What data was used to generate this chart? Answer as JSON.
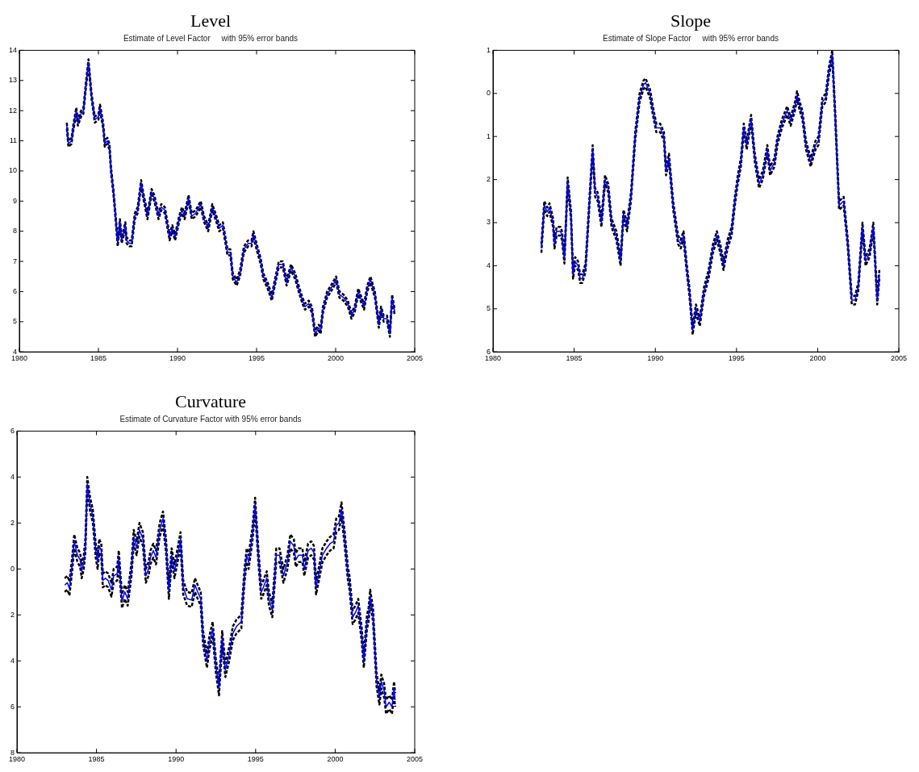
{
  "chart_data": [
    {
      "type": "line",
      "title": "Level",
      "subtitle": "Estimate of Level Factor     with 95% error bands",
      "xlim": [
        1980,
        2005
      ],
      "xticks": [
        1980,
        1985,
        1990,
        1995,
        2000,
        2005
      ],
      "ylim": [
        4,
        14
      ],
      "yticks": [
        4,
        5,
        6,
        7,
        8,
        9,
        10,
        11,
        12,
        13,
        14
      ],
      "grid": false,
      "legend": false,
      "x": [
        1983.0,
        1983.1,
        1983.3,
        1983.4,
        1983.6,
        1983.7,
        1983.9,
        1984.05,
        1984.2,
        1984.37,
        1984.56,
        1984.77,
        1985.0,
        1985.1,
        1985.3,
        1985.4,
        1985.56,
        1985.7,
        1985.8,
        1985.95,
        1986.08,
        1986.22,
        1986.36,
        1986.47,
        1986.57,
        1986.7,
        1986.78,
        1986.96,
        1987.1,
        1987.3,
        1987.48,
        1987.7,
        1987.83,
        1988.1,
        1988.36,
        1988.53,
        1988.8,
        1988.97,
        1989.2,
        1989.5,
        1989.67,
        1989.85,
        1990.1,
        1990.28,
        1990.45,
        1990.7,
        1990.9,
        1991.15,
        1991.47,
        1991.68,
        1991.94,
        1992.2,
        1992.46,
        1992.64,
        1992.87,
        1993.16,
        1993.34,
        1993.5,
        1993.74,
        1993.95,
        1994.2,
        1994.47,
        1994.68,
        1994.8,
        1995.1,
        1995.26,
        1995.43,
        1995.7,
        1995.96,
        1996.2,
        1996.4,
        1996.66,
        1996.9,
        1997.18,
        1997.45,
        1997.66,
        1997.9,
        1998.06,
        1998.3,
        1998.5,
        1998.7,
        1998.93,
        1999.05,
        1999.2,
        1999.46,
        1999.7,
        2000.03,
        2000.24,
        2000.5,
        2000.77,
        2001.0,
        2001.2,
        2001.43,
        2001.64,
        2001.8,
        2002.0,
        2002.2,
        2002.48,
        2002.73,
        2002.87,
        2003.04,
        2003.25,
        2003.43,
        2003.57,
        2003.74
      ],
      "series": [
        {
          "color": "#000000",
          "line_style": "dashed",
          "values": [
            11.4,
            10.8,
            10.9,
            11.3,
            11.9,
            11.5,
            11.8,
            11.9,
            12.7,
            13.5,
            12.4,
            11.6,
            11.7,
            12.0,
            11.4,
            10.8,
            10.9,
            10.7,
            9.9,
            9.2,
            8.4,
            7.5,
            8.2,
            7.6,
            7.8,
            8.1,
            7.6,
            7.5,
            7.5,
            8.4,
            8.6,
            9.5,
            9.1,
            8.4,
            9.2,
            9.0,
            8.4,
            8.7,
            8.6,
            7.7,
            8.0,
            7.7,
            8.3,
            8.6,
            8.4,
            9.0,
            8.4,
            8.5,
            8.8,
            8.3,
            8.0,
            8.7,
            8.3,
            8.0,
            8.1,
            7.2,
            7.2,
            6.4,
            6.2,
            6.5,
            7.3,
            7.5,
            7.5,
            7.8,
            7.2,
            6.9,
            6.4,
            6.1,
            5.7,
            6.3,
            6.8,
            6.8,
            6.2,
            6.7,
            6.4,
            6.0,
            5.6,
            5.4,
            5.5,
            5.3,
            4.5,
            4.7,
            4.6,
            5.3,
            5.8,
            6.0,
            6.3,
            5.8,
            5.7,
            5.5,
            5.1,
            5.3,
            5.9,
            5.6,
            5.4,
            6.0,
            6.3,
            5.8,
            4.8,
            5.3,
            5.0,
            5.0,
            4.5,
            5.7,
            5.2
          ]
        },
        {
          "color": "#000000",
          "line_style": "dashed",
          "values": [
            11.6,
            11.0,
            11.1,
            11.5,
            12.1,
            11.7,
            12.0,
            12.1,
            12.9,
            13.7,
            12.6,
            11.8,
            11.9,
            12.2,
            11.6,
            11.0,
            11.1,
            10.9,
            10.1,
            9.4,
            8.6,
            7.7,
            8.4,
            7.8,
            8.0,
            8.3,
            7.8,
            7.7,
            7.7,
            8.6,
            8.8,
            9.7,
            9.3,
            8.6,
            9.4,
            9.2,
            8.6,
            8.9,
            8.8,
            7.9,
            8.2,
            7.9,
            8.5,
            8.8,
            8.6,
            9.2,
            8.6,
            8.7,
            9.0,
            8.5,
            8.2,
            8.9,
            8.5,
            8.2,
            8.3,
            7.4,
            7.4,
            6.6,
            6.4,
            6.7,
            7.5,
            7.7,
            7.7,
            8.0,
            7.4,
            7.1,
            6.6,
            6.3,
            5.9,
            6.5,
            7.0,
            7.0,
            6.4,
            6.9,
            6.6,
            6.2,
            5.8,
            5.6,
            5.7,
            5.5,
            4.7,
            4.9,
            4.8,
            5.5,
            6.0,
            6.2,
            6.5,
            6.0,
            5.9,
            5.7,
            5.3,
            5.5,
            6.1,
            5.8,
            5.6,
            6.2,
            6.5,
            6.0,
            5.0,
            5.5,
            5.2,
            5.2,
            4.7,
            5.9,
            5.4
          ]
        },
        {
          "color": "#0000ff",
          "line_style": "solid",
          "values": [
            11.5,
            10.9,
            11.0,
            11.4,
            12.0,
            11.6,
            11.9,
            12.0,
            12.8,
            13.6,
            12.5,
            11.7,
            11.8,
            12.1,
            11.5,
            10.9,
            11.0,
            10.8,
            10.0,
            9.3,
            8.5,
            7.6,
            8.3,
            7.7,
            7.9,
            8.2,
            7.7,
            7.6,
            7.6,
            8.5,
            8.7,
            9.6,
            9.2,
            8.5,
            9.3,
            9.1,
            8.5,
            8.8,
            8.7,
            7.8,
            8.1,
            7.8,
            8.4,
            8.7,
            8.5,
            9.1,
            8.5,
            8.6,
            8.9,
            8.4,
            8.1,
            8.8,
            8.4,
            8.1,
            8.2,
            7.3,
            7.3,
            6.5,
            6.3,
            6.6,
            7.4,
            7.6,
            7.6,
            7.9,
            7.3,
            7.0,
            6.5,
            6.2,
            5.8,
            6.4,
            6.9,
            6.9,
            6.3,
            6.8,
            6.5,
            6.1,
            5.7,
            5.5,
            5.6,
            5.4,
            4.6,
            4.8,
            4.7,
            5.4,
            5.9,
            6.1,
            6.4,
            5.9,
            5.8,
            5.6,
            5.2,
            5.4,
            6.0,
            5.7,
            5.5,
            6.1,
            6.4,
            5.9,
            4.9,
            5.4,
            5.1,
            5.1,
            4.6,
            5.8,
            5.3
          ]
        }
      ]
    },
    {
      "type": "line",
      "title": "Slope",
      "subtitle": "Estimate of Slope Factor     with 95% error bands",
      "xlim": [
        1980,
        2005
      ],
      "xticks": [
        1980,
        1985,
        1990,
        1995,
        2000,
        2005
      ],
      "ylim": [
        -6,
        1
      ],
      "yticks": [
        {
          "value": -6,
          "label": "6"
        },
        {
          "value": -5,
          "label": "5"
        },
        {
          "value": -4,
          "label": "4"
        },
        {
          "value": -3,
          "label": "3"
        },
        {
          "value": -2,
          "label": "2"
        },
        {
          "value": -1,
          "label": "1"
        },
        0,
        1
      ],
      "grid": false,
      "legend": false,
      "x": [
        1982.98,
        1983.16,
        1983.34,
        1983.48,
        1983.7,
        1983.79,
        1983.92,
        1984.16,
        1984.25,
        1984.4,
        1984.6,
        1984.8,
        1984.93,
        1985.06,
        1985.24,
        1985.37,
        1985.5,
        1985.7,
        1985.96,
        1986.14,
        1986.29,
        1986.45,
        1986.68,
        1986.9,
        1987.1,
        1987.3,
        1987.6,
        1987.86,
        1988.04,
        1988.26,
        1988.5,
        1988.76,
        1989.03,
        1989.27,
        1989.4,
        1989.67,
        1989.85,
        1990.06,
        1990.3,
        1990.53,
        1990.66,
        1990.84,
        1991.1,
        1991.4,
        1991.56,
        1991.74,
        1991.92,
        1992.1,
        1992.3,
        1992.5,
        1992.74,
        1993.0,
        1993.28,
        1993.55,
        1993.79,
        1994.0,
        1994.2,
        1994.45,
        1994.7,
        1994.9,
        1995.08,
        1995.27,
        1995.45,
        1995.63,
        1995.9,
        1996.13,
        1996.39,
        1996.62,
        1996.9,
        1997.07,
        1997.34,
        1997.52,
        1997.8,
        1998.12,
        1998.34,
        1998.6,
        1998.73,
        1998.9,
        1999.06,
        1999.28,
        1999.57,
        1999.87,
        2000.05,
        2000.29,
        2000.5,
        2000.69,
        2000.9,
        2001.08,
        2001.32,
        2001.6,
        2001.86,
        2002.1,
        2002.3,
        2002.5,
        2002.76,
        2002.95,
        2003.2,
        2003.43,
        2003.67,
        2003.8
      ],
      "series": [
        {
          "color": "#000000",
          "line_style": "dashed",
          "values": [
            -3.7,
            -2.7,
            -2.85,
            -2.75,
            -3.1,
            -3.6,
            -3.3,
            -3.3,
            -3.4,
            -3.95,
            -2.15,
            -2.9,
            -4.3,
            -4.0,
            -4.1,
            -4.4,
            -4.4,
            -4.15,
            -2.5,
            -1.4,
            -2.4,
            -2.5,
            -3.1,
            -2.1,
            -2.3,
            -3.1,
            -3.4,
            -4.0,
            -2.9,
            -3.2,
            -2.5,
            -1.1,
            -0.2,
            0.1,
            0.15,
            -0.1,
            -0.5,
            -0.9,
            -0.9,
            -1.1,
            -1.9,
            -1.6,
            -2.7,
            -3.5,
            -3.6,
            -3.4,
            -4.1,
            -4.7,
            -5.6,
            -5.1,
            -5.4,
            -4.7,
            -4.3,
            -3.7,
            -3.4,
            -3.7,
            -4.1,
            -3.6,
            -3.3,
            -2.6,
            -2.1,
            -1.7,
            -0.9,
            -1.3,
            -0.7,
            -1.6,
            -2.2,
            -2.0,
            -1.4,
            -1.9,
            -1.7,
            -1.2,
            -0.8,
            -0.5,
            -0.75,
            -0.4,
            -0.15,
            -0.4,
            -0.6,
            -1.3,
            -1.7,
            -1.3,
            -1.2,
            -0.3,
            -0.2,
            0.4,
            0.8,
            -0.6,
            -2.7,
            -2.6,
            -3.6,
            -4.9,
            -4.9,
            -4.6,
            -3.2,
            -4.0,
            -3.8,
            -3.2,
            -4.9,
            -4.3
          ]
        },
        {
          "color": "#000000",
          "line_style": "dashed",
          "values": [
            -3.5,
            -2.5,
            -2.65,
            -2.55,
            -2.9,
            -3.4,
            -3.1,
            -3.1,
            -3.2,
            -3.75,
            -1.95,
            -2.7,
            -4.1,
            -3.8,
            -3.9,
            -4.2,
            -4.2,
            -3.95,
            -2.3,
            -1.2,
            -2.2,
            -2.3,
            -2.9,
            -1.9,
            -2.1,
            -2.9,
            -3.2,
            -3.8,
            -2.7,
            -3.0,
            -2.3,
            -0.9,
            0.0,
            0.3,
            0.35,
            0.1,
            -0.3,
            -0.7,
            -0.7,
            -0.9,
            -1.7,
            -1.4,
            -2.5,
            -3.3,
            -3.4,
            -3.2,
            -3.9,
            -4.5,
            -5.4,
            -4.9,
            -5.2,
            -4.5,
            -4.1,
            -3.5,
            -3.2,
            -3.5,
            -3.9,
            -3.4,
            -3.1,
            -2.4,
            -1.9,
            -1.5,
            -0.7,
            -1.1,
            -0.5,
            -1.4,
            -2.0,
            -1.8,
            -1.2,
            -1.7,
            -1.5,
            -1.0,
            -0.6,
            -0.3,
            -0.55,
            -0.2,
            0.05,
            -0.2,
            -0.4,
            -1.1,
            -1.5,
            -1.1,
            -1.0,
            -0.1,
            0.0,
            0.6,
            1.0,
            -0.4,
            -2.5,
            -2.4,
            -3.4,
            -4.7,
            -4.7,
            -4.4,
            -3.0,
            -3.8,
            -3.6,
            -3.0,
            -4.7,
            -4.1
          ]
        },
        {
          "color": "#0000ff",
          "line_style": "solid",
          "values": [
            -3.6,
            -2.6,
            -2.75,
            -2.65,
            -3.0,
            -3.5,
            -3.2,
            -3.2,
            -3.3,
            -3.85,
            -2.05,
            -2.8,
            -4.2,
            -3.9,
            -4.0,
            -4.3,
            -4.3,
            -4.05,
            -2.4,
            -1.3,
            -2.3,
            -2.4,
            -3.0,
            -2.0,
            -2.2,
            -3.0,
            -3.3,
            -3.9,
            -2.8,
            -3.1,
            -2.4,
            -1.0,
            -0.1,
            0.2,
            0.25,
            0.0,
            -0.4,
            -0.8,
            -0.8,
            -1.0,
            -1.8,
            -1.5,
            -2.6,
            -3.4,
            -3.5,
            -3.3,
            -4.0,
            -4.6,
            -5.5,
            -5.0,
            -5.3,
            -4.6,
            -4.2,
            -3.6,
            -3.3,
            -3.6,
            -4.0,
            -3.5,
            -3.2,
            -2.5,
            -2.0,
            -1.6,
            -0.8,
            -1.2,
            -0.6,
            -1.5,
            -2.1,
            -1.9,
            -1.3,
            -1.8,
            -1.6,
            -1.1,
            -0.7,
            -0.4,
            -0.65,
            -0.3,
            -0.05,
            -0.3,
            -0.5,
            -1.2,
            -1.6,
            -1.2,
            -1.1,
            -0.2,
            -0.1,
            0.5,
            0.9,
            -0.5,
            -2.6,
            -2.5,
            -3.5,
            -4.8,
            -4.8,
            -4.5,
            -3.1,
            -3.9,
            -3.7,
            -3.1,
            -4.8,
            -4.2
          ]
        }
      ]
    },
    {
      "type": "line",
      "title": "Curvature",
      "subtitle": "Estimate of Curvature Factor with 95% error bands",
      "xlim": [
        1980,
        2005
      ],
      "xticks": [
        1980,
        1985,
        1990,
        1995,
        2000,
        2005
      ],
      "ylim": [
        -8,
        6
      ],
      "yticks": [
        {
          "value": -8,
          "label": "8"
        },
        {
          "value": -6,
          "label": "6"
        },
        {
          "value": -4,
          "label": "4"
        },
        {
          "value": -2,
          "label": "2"
        },
        0,
        2,
        4,
        6
      ],
      "grid": false,
      "legend": false,
      "x": [
        1983.0,
        1983.17,
        1983.3,
        1983.47,
        1983.6,
        1983.8,
        1983.97,
        1984.07,
        1984.2,
        1984.3,
        1984.42,
        1984.6,
        1984.77,
        1984.95,
        1985.07,
        1985.17,
        1985.3,
        1985.4,
        1985.56,
        1985.73,
        1985.94,
        1986.08,
        1986.3,
        1986.4,
        1986.6,
        1986.78,
        1986.96,
        1987.2,
        1987.34,
        1987.52,
        1987.7,
        1987.92,
        1988.1,
        1988.27,
        1988.39,
        1988.57,
        1988.74,
        1988.97,
        1989.18,
        1989.37,
        1989.55,
        1989.72,
        1989.9,
        1990.07,
        1990.28,
        1990.45,
        1990.7,
        1990.98,
        1991.19,
        1991.36,
        1991.55,
        1991.7,
        1991.94,
        1992.1,
        1992.3,
        1992.5,
        1992.7,
        1992.9,
        1993.1,
        1993.34,
        1993.57,
        1993.8,
        1994.1,
        1994.3,
        1994.44,
        1994.56,
        1994.8,
        1994.97,
        1995.17,
        1995.35,
        1995.49,
        1995.7,
        1995.84,
        1996.05,
        1996.3,
        1996.5,
        1996.75,
        1997.0,
        1997.18,
        1997.4,
        1997.53,
        1997.7,
        1997.94,
        1998.06,
        1998.3,
        1998.5,
        1998.67,
        1998.8,
        1998.98,
        1999.2,
        1999.46,
        1999.68,
        1999.9,
        2000.07,
        2000.24,
        2000.4,
        2000.6,
        2000.8,
        2000.9,
        2001.1,
        2001.27,
        2001.45,
        2001.66,
        2001.8,
        2002.0,
        2002.1,
        2002.2,
        2002.38,
        2002.6,
        2002.78,
        2002.9,
        2003.08,
        2003.2,
        2003.4,
        2003.57,
        2003.7,
        2003.77
      ],
      "series": [
        {
          "color": "#000000",
          "line_style": "dashed",
          "values": [
            -1.0,
            -0.9,
            -1.15,
            -0.1,
            0.9,
            0.3,
            0.1,
            -0.4,
            0.0,
            0.7,
            3.4,
            2.5,
            2.0,
            0.5,
            0.0,
            0.7,
            0.5,
            -0.8,
            -0.7,
            -0.8,
            -1.2,
            -0.6,
            -0.5,
            0.2,
            -1.7,
            -1.3,
            -1.6,
            -0.3,
            1.1,
            0.6,
            1.4,
            1.0,
            -0.6,
            -0.3,
            0.2,
            0.5,
            0.2,
            1.4,
            1.9,
            0.7,
            -1.3,
            0.3,
            -0.4,
            0.2,
            1.0,
            -1.1,
            -1.6,
            -1.65,
            -1.0,
            -1.3,
            -1.6,
            -3.3,
            -4.3,
            -3.5,
            -2.9,
            -4.5,
            -5.5,
            -3.3,
            -4.7,
            -4.0,
            -3.1,
            -2.8,
            -2.6,
            -0.6,
            0.3,
            0.0,
            1.2,
            2.5,
            0.3,
            -1.3,
            -1.1,
            -0.7,
            -1.6,
            -2.1,
            0.3,
            0.3,
            -0.6,
            0.0,
            0.9,
            0.7,
            0.1,
            0.3,
            0.3,
            -0.3,
            0.5,
            0.6,
            0.4,
            -1.1,
            -0.5,
            0.3,
            0.6,
            0.8,
            0.9,
            1.6,
            1.7,
            2.3,
            1.0,
            -0.5,
            -0.9,
            -2.4,
            -2.2,
            -1.9,
            -3.1,
            -4.3,
            -2.6,
            -2.3,
            -1.5,
            -2.3,
            -5.1,
            -5.9,
            -5.2,
            -5.6,
            -6.3,
            -6.1,
            -6.3,
            -5.5,
            -6.0
          ]
        },
        {
          "color": "#000000",
          "line_style": "dashed",
          "values": [
            -0.4,
            -0.3,
            -0.55,
            0.5,
            1.5,
            0.9,
            0.7,
            0.2,
            0.6,
            1.3,
            4.0,
            3.1,
            2.6,
            1.1,
            0.6,
            1.3,
            1.1,
            -0.2,
            -0.1,
            -0.2,
            -0.6,
            0.0,
            0.1,
            0.8,
            -1.1,
            -0.7,
            -1.0,
            0.3,
            1.7,
            1.2,
            2.0,
            1.6,
            0.0,
            0.3,
            0.8,
            1.1,
            0.8,
            2.0,
            2.5,
            1.3,
            -0.7,
            0.9,
            0.2,
            0.8,
            1.6,
            -0.5,
            -1.0,
            -1.05,
            -0.4,
            -0.7,
            -1.0,
            -2.7,
            -3.7,
            -2.9,
            -2.3,
            -3.9,
            -4.9,
            -2.7,
            -4.1,
            -3.4,
            -2.5,
            -2.2,
            -2.0,
            0.0,
            0.9,
            0.6,
            1.8,
            3.1,
            0.9,
            -0.7,
            -0.5,
            -0.1,
            -1.0,
            -1.5,
            0.9,
            0.9,
            0.0,
            0.6,
            1.5,
            1.3,
            0.7,
            0.9,
            0.9,
            0.3,
            1.1,
            1.2,
            1.0,
            -0.5,
            0.1,
            0.9,
            1.2,
            1.4,
            1.5,
            2.2,
            2.3,
            2.9,
            1.6,
            0.1,
            -0.3,
            -1.8,
            -1.6,
            -1.3,
            -2.5,
            -3.7,
            -2.0,
            -1.7,
            -0.9,
            -1.7,
            -4.5,
            -5.3,
            -4.6,
            -5.0,
            -5.7,
            -5.5,
            -5.7,
            -4.9,
            -5.4
          ]
        },
        {
          "color": "#0000ff",
          "line_style": "solid",
          "values": [
            -0.7,
            -0.6,
            -0.85,
            0.2,
            1.2,
            0.6,
            0.4,
            -0.1,
            0.3,
            1.0,
            3.7,
            2.8,
            2.3,
            0.8,
            0.3,
            1.0,
            0.8,
            -0.5,
            -0.4,
            -0.5,
            -0.9,
            -0.3,
            -0.2,
            0.5,
            -1.4,
            -1.0,
            -1.3,
            0.0,
            1.4,
            0.9,
            1.7,
            1.3,
            -0.3,
            0.0,
            0.5,
            0.8,
            0.5,
            1.7,
            2.2,
            1.0,
            -1.0,
            0.6,
            -0.1,
            0.5,
            1.3,
            -0.8,
            -1.3,
            -1.35,
            -0.7,
            -1.0,
            -1.3,
            -3.0,
            -4.0,
            -3.2,
            -2.6,
            -4.2,
            -5.2,
            -3.0,
            -4.4,
            -3.7,
            -2.8,
            -2.5,
            -2.3,
            -0.3,
            0.6,
            0.3,
            1.5,
            2.8,
            0.6,
            -1.0,
            -0.8,
            -0.4,
            -1.3,
            -1.8,
            0.6,
            0.6,
            -0.3,
            0.3,
            1.2,
            1.0,
            0.4,
            0.6,
            0.6,
            0.0,
            0.8,
            0.9,
            0.7,
            -0.8,
            -0.2,
            0.6,
            0.9,
            1.1,
            1.2,
            1.9,
            2.0,
            2.6,
            1.3,
            -0.2,
            -0.6,
            -2.1,
            -1.9,
            -1.6,
            -2.8,
            -4.0,
            -2.3,
            -2.0,
            -1.2,
            -2.0,
            -4.8,
            -5.6,
            -4.9,
            -5.3,
            -6.0,
            -5.8,
            -6.0,
            -5.2,
            -5.7
          ]
        }
      ]
    }
  ]
}
